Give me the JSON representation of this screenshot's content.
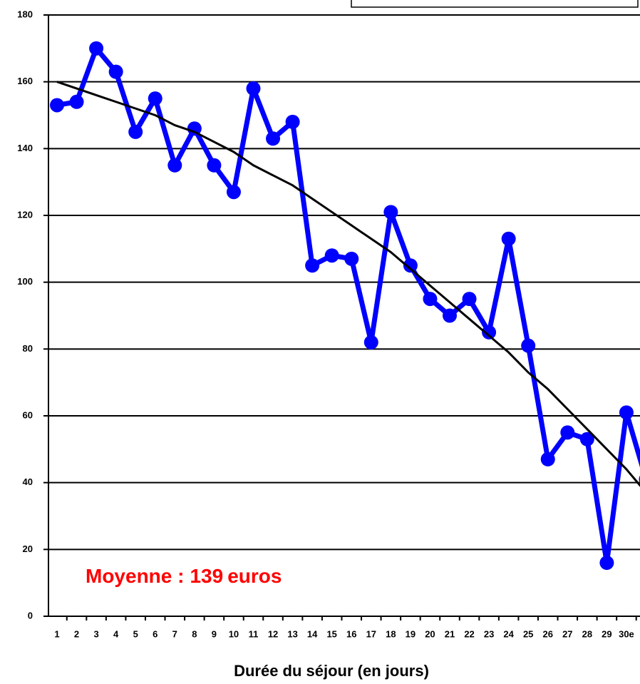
{
  "chart_data": {
    "type": "line",
    "x_label": "Durée du séjour (en jours)",
    "categories": [
      "1",
      "2",
      "3",
      "4",
      "5",
      "6",
      "7",
      "8",
      "9",
      "10",
      "11",
      "12",
      "13",
      "14",
      "15",
      "16",
      "17",
      "18",
      "19",
      "20",
      "21",
      "22",
      "23",
      "24",
      "25",
      "26",
      "27",
      "28",
      "29",
      "30e",
      null
    ],
    "series": [
      {
        "color": "#0000ff",
        "marker": true,
        "values": [
          153,
          154,
          170,
          163,
          145,
          155,
          135,
          146,
          135,
          127,
          158,
          143,
          148,
          105,
          108,
          107,
          82,
          121,
          105,
          95,
          90,
          95,
          85,
          113,
          81,
          47,
          55,
          53,
          16,
          61,
          41
        ]
      },
      {
        "color": "#000000",
        "marker": false,
        "values": [
          160,
          158,
          156,
          154,
          152,
          150,
          147,
          145,
          142,
          139,
          135,
          132,
          129,
          125,
          121,
          117,
          113,
          109,
          104,
          99,
          94,
          89,
          84,
          79,
          73,
          68,
          62,
          56,
          50,
          44,
          37
        ]
      }
    ],
    "ylim": [
      0,
      180
    ],
    "yticks": [
      0,
      20,
      40,
      60,
      80,
      100,
      120,
      140,
      160,
      180
    ],
    "grid": true,
    "annotation": {
      "label": "Moyenne :",
      "value": 139,
      "unit": "euros",
      "color": "#ff0000"
    }
  }
}
